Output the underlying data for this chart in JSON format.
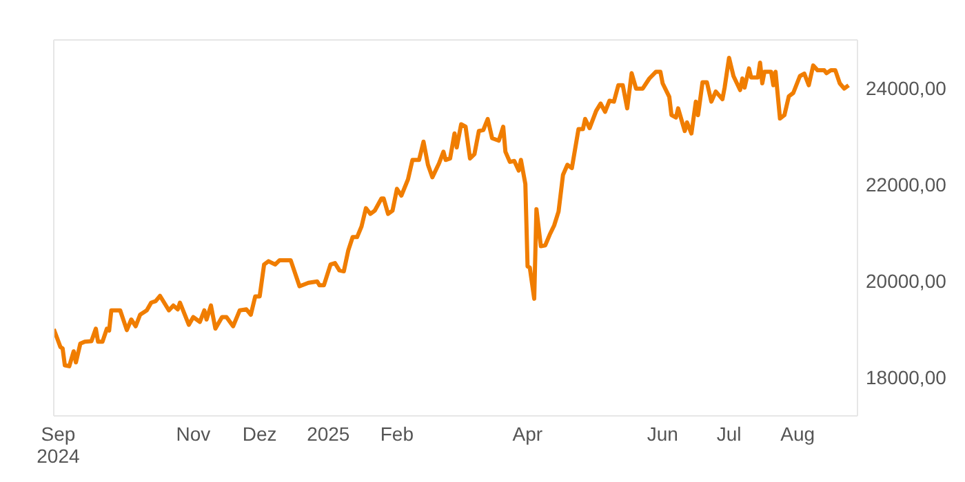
{
  "chart_data": {
    "type": "line",
    "marker": "none",
    "line_style": "solid",
    "xlim": [
      "2024-08-30",
      "2025-08-28"
    ],
    "xticks": [
      {
        "value": "2024-09-01",
        "label": "Sep\n2024"
      },
      {
        "value": "2024-11-01",
        "label": "Nov"
      },
      {
        "value": "2024-12-01",
        "label": "Dez"
      },
      {
        "value": "2025-01-01",
        "label": "2025"
      },
      {
        "value": "2025-02-01",
        "label": "Feb"
      },
      {
        "value": "2025-04-01",
        "label": "Apr"
      },
      {
        "value": "2025-06-01",
        "label": "Jun"
      },
      {
        "value": "2025-07-01",
        "label": "Jul"
      },
      {
        "value": "2025-08-01",
        "label": "Aug"
      }
    ],
    "ylim": [
      17200,
      25000
    ],
    "yticks": [
      {
        "value": 18000,
        "label": "18000,00"
      },
      {
        "value": 20000,
        "label": "20000,00"
      },
      {
        "value": 22000,
        "label": "22000,00"
      },
      {
        "value": 24000,
        "label": "24000,00"
      }
    ],
    "x": [
      "2024-08-30",
      "2024-09-02",
      "2024-09-03",
      "2024-09-04",
      "2024-09-06",
      "2024-09-08",
      "2024-09-09",
      "2024-09-11",
      "2024-09-13",
      "2024-09-16",
      "2024-09-18",
      "2024-09-19",
      "2024-09-21",
      "2024-09-23",
      "2024-09-24",
      "2024-09-25",
      "2024-09-29",
      "2024-10-02",
      "2024-10-04",
      "2024-10-06",
      "2024-10-08",
      "2024-10-11",
      "2024-10-13",
      "2024-10-15",
      "2024-10-17",
      "2024-10-21",
      "2024-10-23",
      "2024-10-25",
      "2024-10-26",
      "2024-10-30",
      "2024-11-01",
      "2024-11-04",
      "2024-11-06",
      "2024-11-07",
      "2024-11-09",
      "2024-11-11",
      "2024-11-14",
      "2024-11-16",
      "2024-11-19",
      "2024-11-22",
      "2024-11-25",
      "2024-11-27",
      "2024-11-29",
      "2024-12-01",
      "2024-12-03",
      "2024-12-05",
      "2024-12-08",
      "2024-12-10",
      "2024-12-15",
      "2024-12-19",
      "2024-12-23",
      "2024-12-27",
      "2024-12-28",
      "2024-12-30",
      "2025-01-02",
      "2025-01-04",
      "2025-01-06",
      "2025-01-08",
      "2025-01-10",
      "2025-01-12",
      "2025-01-14",
      "2025-01-16",
      "2025-01-18",
      "2025-01-20",
      "2025-01-22",
      "2025-01-25",
      "2025-01-26",
      "2025-01-28",
      "2025-01-30",
      "2025-02-01",
      "2025-02-03",
      "2025-02-06",
      "2025-02-08",
      "2025-02-11",
      "2025-02-13",
      "2025-02-15",
      "2025-02-17",
      "2025-02-20",
      "2025-02-22",
      "2025-02-23",
      "2025-02-25",
      "2025-02-27",
      "2025-02-28",
      "2025-03-02",
      "2025-03-04",
      "2025-03-06",
      "2025-03-08",
      "2025-03-10",
      "2025-03-12",
      "2025-03-14",
      "2025-03-16",
      "2025-03-19",
      "2025-03-21",
      "2025-03-22",
      "2025-03-24",
      "2025-03-26",
      "2025-03-28",
      "2025-03-29",
      "2025-03-31",
      "2025-04-01",
      "2025-04-02",
      "2025-04-04",
      "2025-04-05",
      "2025-04-07",
      "2025-04-09",
      "2025-04-11",
      "2025-04-13",
      "2025-04-15",
      "2025-04-17",
      "2025-04-19",
      "2025-04-21",
      "2025-04-24",
      "2025-04-26",
      "2025-04-27",
      "2025-04-29",
      "2025-05-02",
      "2025-05-04",
      "2025-05-06",
      "2025-05-08",
      "2025-05-10",
      "2025-05-12",
      "2025-05-14",
      "2025-05-16",
      "2025-05-18",
      "2025-05-20",
      "2025-05-23",
      "2025-05-26",
      "2025-05-29",
      "2025-05-31",
      "2025-06-01",
      "2025-06-04",
      "2025-06-05",
      "2025-06-07",
      "2025-06-08",
      "2025-06-11",
      "2025-06-12",
      "2025-06-14",
      "2025-06-16",
      "2025-06-17",
      "2025-06-19",
      "2025-06-21",
      "2025-06-23",
      "2025-06-25",
      "2025-06-28",
      "2025-06-29",
      "2025-07-01",
      "2025-07-03",
      "2025-07-06",
      "2025-07-07",
      "2025-07-08",
      "2025-07-10",
      "2025-07-11",
      "2025-07-14",
      "2025-07-15",
      "2025-07-16",
      "2025-07-17",
      "2025-07-20",
      "2025-07-21",
      "2025-07-22",
      "2025-07-24",
      "2025-07-26",
      "2025-07-28",
      "2025-07-30",
      "2025-08-02",
      "2025-08-04",
      "2025-08-06",
      "2025-08-08",
      "2025-08-10",
      "2025-08-13",
      "2025-08-14",
      "2025-08-16",
      "2025-08-18",
      "2025-08-20",
      "2025-08-22",
      "2025-08-24"
    ],
    "series": [
      {
        "color": "#f07d00",
        "values": [
          19000,
          18630,
          18600,
          18250,
          18230,
          18540,
          18310,
          18700,
          18740,
          18750,
          19010,
          18740,
          18740,
          19010,
          18970,
          19390,
          19390,
          18980,
          19200,
          19060,
          19300,
          19390,
          19550,
          19580,
          19690,
          19390,
          19490,
          19410,
          19550,
          19090,
          19250,
          19150,
          19390,
          19200,
          19490,
          19010,
          19250,
          19250,
          19060,
          19390,
          19410,
          19300,
          19680,
          19680,
          20340,
          20410,
          20340,
          20430,
          20430,
          19890,
          19960,
          19990,
          19910,
          19910,
          20340,
          20370,
          20220,
          20200,
          20630,
          20910,
          20910,
          21130,
          21510,
          21390,
          21460,
          21710,
          21710,
          21390,
          21460,
          21910,
          21770,
          22110,
          22510,
          22510,
          22890,
          22410,
          22150,
          22440,
          22680,
          22510,
          22540,
          23060,
          22770,
          23250,
          23200,
          22540,
          22630,
          23110,
          23130,
          23360,
          22960,
          22910,
          23200,
          22680,
          22470,
          22490,
          22290,
          22510,
          22010,
          20300,
          20280,
          19630,
          21490,
          20720,
          20740,
          20960,
          21150,
          21440,
          22200,
          22410,
          22340,
          23150,
          23150,
          23360,
          23170,
          23530,
          23680,
          23510,
          23740,
          23720,
          24060,
          24060,
          23580,
          24310,
          23990,
          23990,
          24200,
          24340,
          24340,
          24100,
          23820,
          23440,
          23390,
          23580,
          23110,
          23290,
          23060,
          23720,
          23440,
          24120,
          24120,
          23720,
          23930,
          23770,
          24010,
          24630,
          24250,
          23960,
          24200,
          24010,
          24410,
          24220,
          24220,
          24530,
          24100,
          24340,
          24340,
          24060,
          24340,
          23370,
          23440,
          23830,
          23900,
          24250,
          24300,
          24060,
          24470,
          24370,
          24370,
          24310,
          24370,
          24370,
          24100,
          23990,
          24060
        ]
      }
    ]
  }
}
